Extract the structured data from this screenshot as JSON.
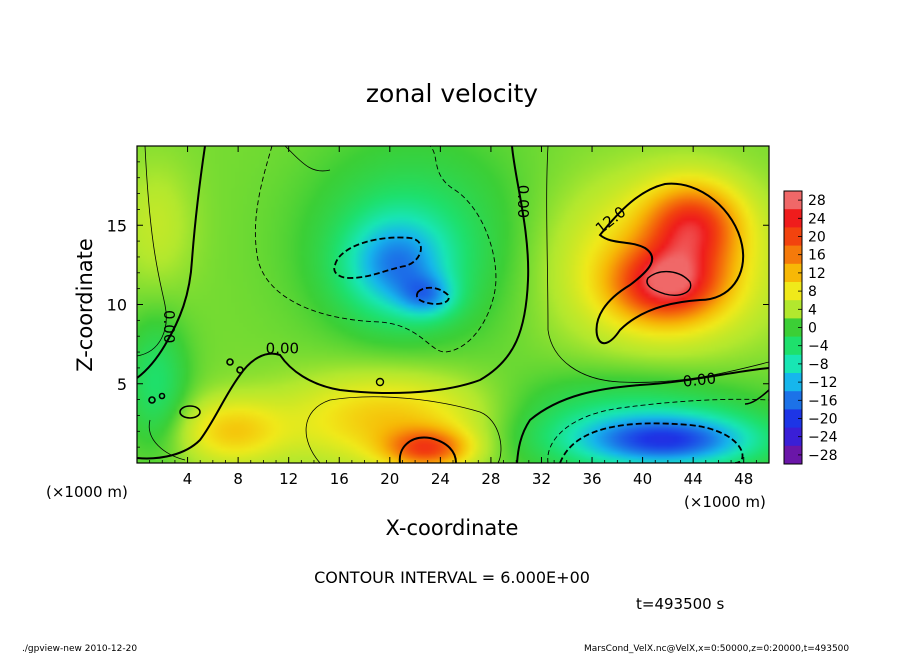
{
  "chart_data": {
    "type": "heatmap",
    "title": "zonal velocity",
    "xlabel": "X-coordinate",
    "ylabel": "Z-coordinate",
    "x_unit_left": "(×1000 m)",
    "x_unit_right": "(×1000 m)",
    "xlim": [
      0,
      50
    ],
    "ylim": [
      0,
      20
    ],
    "x_ticks": [
      4,
      8,
      12,
      16,
      20,
      24,
      28,
      32,
      36,
      40,
      44,
      48
    ],
    "y_ticks": [
      5,
      10,
      15
    ],
    "colorbar": {
      "levels": [
        28,
        24,
        20,
        16,
        12,
        8,
        4,
        0,
        -4,
        -8,
        -12,
        -16,
        -20,
        -24,
        -28
      ],
      "labels": [
        "28",
        "24",
        "20",
        "16",
        "12",
        "8",
        "4",
        "0",
        "−4",
        "−8",
        "−12",
        "−16",
        "−20",
        "−24",
        "−28"
      ],
      "colors": [
        "#f06868",
        "#ef1c1c",
        "#f2430e",
        "#f57a0a",
        "#f7b806",
        "#f0e91a",
        "#b2e82e",
        "#3ccf36",
        "#1ee06c",
        "#18e6b4",
        "#16b6ec",
        "#1c72e8",
        "#1d35e6",
        "#3a1fd6",
        "#6a16a8"
      ]
    },
    "field_centers": [
      {
        "x": 20.5,
        "z": 12.5,
        "value": -12.5,
        "rx": 4,
        "rz": 3
      },
      {
        "x": 23,
        "z": 10.5,
        "value": -9,
        "rx": 2.2,
        "rz": 1.3
      },
      {
        "x": 22,
        "z": 14,
        "value": -6,
        "rx": 8,
        "rz": 6
      },
      {
        "x": 42,
        "z": 11.3,
        "value": 18.5,
        "rx": 4,
        "rz": 2.2
      },
      {
        "x": 44,
        "z": 15,
        "value": 16,
        "rx": 3.5,
        "rz": 2.5
      },
      {
        "x": 41.5,
        "z": 12.5,
        "value": 9,
        "rx": 8,
        "rz": 5
      },
      {
        "x": 42,
        "z": 1.4,
        "value": -17,
        "rx": 7,
        "rz": 1.6
      },
      {
        "x": 39,
        "z": 2.5,
        "value": -7,
        "rx": 10,
        "rz": 3
      },
      {
        "x": 23,
        "z": 0.9,
        "value": 15,
        "rx": 3.2,
        "rz": 1.2
      },
      {
        "x": 20,
        "z": 2.8,
        "value": 9,
        "rx": 8,
        "rz": 2.8
      },
      {
        "x": 7.5,
        "z": 2,
        "value": 8,
        "rx": 4,
        "rz": 2
      },
      {
        "x": 1.5,
        "z": 5,
        "value": -6,
        "rx": 2.5,
        "rz": 4
      },
      {
        "x": 1.5,
        "z": 15,
        "value": 3,
        "rx": 3,
        "rz": 4
      }
    ],
    "contour_labels": [
      {
        "text": "0.00",
        "x": 2.5,
        "z": 8.6,
        "angle": 90
      },
      {
        "text": "0.00",
        "x": 11.5,
        "z": 7.2,
        "angle": 0
      },
      {
        "text": "0.00",
        "x": 30.5,
        "z": 16.5,
        "angle": 90
      },
      {
        "text": "12.0",
        "x": 37.5,
        "z": 15.3,
        "angle": -38
      },
      {
        "text": "0.00",
        "x": 44.5,
        "z": 5.2,
        "angle": -6
      }
    ],
    "contour_interval_text": "CONTOUR INTERVAL = 6.000E+00",
    "time_text": "t=493500 s"
  },
  "footer": {
    "left": "./gpview-new   2010-12-20",
    "right": "MarsCond_VelX.nc@VelX,x=0:50000,z=0:20000,t=493500"
  }
}
